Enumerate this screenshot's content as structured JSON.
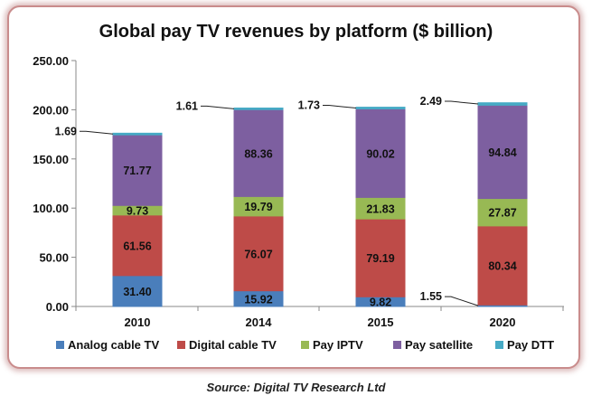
{
  "chart_data": {
    "type": "bar",
    "stacked": true,
    "title": "Global pay TV revenues by platform ($ billion)",
    "xlabel": "",
    "ylabel": "",
    "categories": [
      "2010",
      "2014",
      "2015",
      "2020"
    ],
    "ylim": [
      0,
      250
    ],
    "yticks": [
      "0.00",
      "50.00",
      "100.00",
      "150.00",
      "200.00",
      "250.00"
    ],
    "legend_position": "bottom",
    "grid": false,
    "series": [
      {
        "name": "Analog cable TV",
        "color": "#4a7ebb",
        "values": [
          31.4,
          15.92,
          9.82,
          1.55
        ],
        "labels": [
          "31.40",
          "15.92",
          "9.82",
          "1.55"
        ]
      },
      {
        "name": "Digital cable TV",
        "color": "#be4b48",
        "values": [
          61.56,
          76.07,
          79.19,
          80.34
        ],
        "labels": [
          "61.56",
          "76.07",
          "79.19",
          "80.34"
        ]
      },
      {
        "name": "Pay IPTV",
        "color": "#98b954",
        "values": [
          9.73,
          19.79,
          21.83,
          27.87
        ],
        "labels": [
          "9.73",
          "19.79",
          "21.83",
          "27.87"
        ]
      },
      {
        "name": "Pay satellite",
        "color": "#7d5fa0",
        "values": [
          71.77,
          88.36,
          90.02,
          94.84
        ],
        "labels": [
          "71.77",
          "88.36",
          "90.02",
          "94.84"
        ]
      },
      {
        "name": "Pay DTT",
        "color": "#46aac5",
        "values": [
          1.69,
          1.61,
          1.73,
          2.49
        ],
        "labels": [
          "1.69",
          "1.61",
          "1.73",
          "2.49"
        ]
      }
    ]
  },
  "footer": {
    "source": "Source: Digital TV Research Ltd"
  }
}
